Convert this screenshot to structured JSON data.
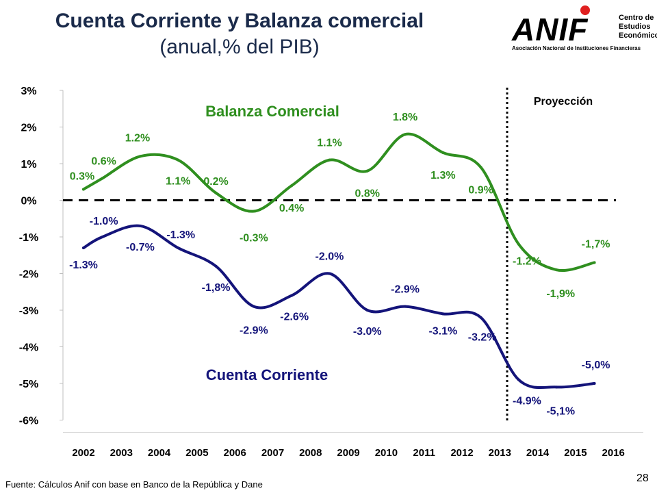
{
  "header": {
    "title": "Cuenta Corriente y Balanza comercial",
    "subtitle": "(anual,% del PIB)"
  },
  "logo": {
    "wordmark": "ANIF",
    "side_lines": [
      "Centro de",
      "Estudios",
      "Económicos"
    ],
    "tagline": "Asociación Nacional de Instituciones Financieras"
  },
  "footer": {
    "source": "Fuente: Cálculos Anif con base en Banco de la República y Dane",
    "page_number": "28"
  },
  "colors": {
    "balanza": "#2f8f1f",
    "cuenta": "#14147a",
    "axis": "#bfbfbf",
    "text": "#000000"
  },
  "chart_data": {
    "type": "line",
    "title": "Cuenta Corriente y Balanza comercial",
    "xlabel": "",
    "ylabel": "",
    "ylim": [
      -6,
      3
    ],
    "y_ticks": [
      "3%",
      "2%",
      "1%",
      "0%",
      "-1%",
      "-2%",
      "-3%",
      "-4%",
      "-5%",
      "-6%"
    ],
    "x": [
      "2002",
      "2003",
      "2004",
      "2005",
      "2006",
      "2007",
      "2008",
      "2009",
      "2010",
      "2011",
      "2012",
      "2013",
      "2014",
      "2015",
      "2016"
    ],
    "projection_label": "Proyección",
    "projection_after": "2013",
    "zero_line": "dashed",
    "series": [
      {
        "name": "Balanza Comercial",
        "color": "#2f8f1f",
        "data": [
          {
            "x": "2002",
            "y": 0.3,
            "label": "0.3%"
          },
          {
            "x": "2002.5",
            "y": 0.6,
            "label": "0.6%"
          },
          {
            "x": "2003.5",
            "y": 1.2,
            "label": "1.2%"
          },
          {
            "x": "2004.5",
            "y": 1.1,
            "label": "1.1%"
          },
          {
            "x": "2005.5",
            "y": 0.2,
            "label": "0.2%"
          },
          {
            "x": "2006.5",
            "y": -0.3,
            "label": "-0.3%"
          },
          {
            "x": "2007.5",
            "y": 0.4,
            "label": "0.4%"
          },
          {
            "x": "2008.5",
            "y": 1.1,
            "label": "1.1%"
          },
          {
            "x": "2009.5",
            "y": 0.8,
            "label": "0.8%"
          },
          {
            "x": "2010.5",
            "y": 1.8,
            "label": "1.8%"
          },
          {
            "x": "2011.5",
            "y": 1.3,
            "label": "1.3%"
          },
          {
            "x": "2012.5",
            "y": 0.9,
            "label": "0.9%"
          },
          {
            "x": "2013.5",
            "y": -1.2,
            "label": "-1.2%"
          },
          {
            "x": "2014.5",
            "y": -1.9,
            "label": "-1,9%"
          },
          {
            "x": "2015.5",
            "y": -1.7,
            "label": "-1,7%"
          }
        ]
      },
      {
        "name": "Cuenta Corriente",
        "color": "#14147a",
        "data": [
          {
            "x": "2002",
            "y": -1.3,
            "label": "-1.3%"
          },
          {
            "x": "2002.5",
            "y": -1.0,
            "label": "-1.0%"
          },
          {
            "x": "2003.5",
            "y": -0.7,
            "label": "-0.7%"
          },
          {
            "x": "2004.5",
            "y": -1.3,
            "label": "-1.3%"
          },
          {
            "x": "2005.5",
            "y": -1.8,
            "label": "-1,8%"
          },
          {
            "x": "2006.5",
            "y": -2.9,
            "label": "-2.9%"
          },
          {
            "x": "2007.5",
            "y": -2.6,
            "label": "-2.6%"
          },
          {
            "x": "2008.5",
            "y": -2.0,
            "label": "-2.0%"
          },
          {
            "x": "2009.5",
            "y": -3.0,
            "label": "-3.0%"
          },
          {
            "x": "2010.5",
            "y": -2.9,
            "label": "-2.9%"
          },
          {
            "x": "2011.5",
            "y": -3.1,
            "label": "-3.1%"
          },
          {
            "x": "2012.5",
            "y": -3.2,
            "label": "-3.2%"
          },
          {
            "x": "2013.5",
            "y": -4.9,
            "label": "-4.9%"
          },
          {
            "x": "2014.5",
            "y": -5.1,
            "label": "-5,1%"
          },
          {
            "x": "2015.5",
            "y": -5.0,
            "label": "-5,0%"
          }
        ]
      }
    ]
  }
}
